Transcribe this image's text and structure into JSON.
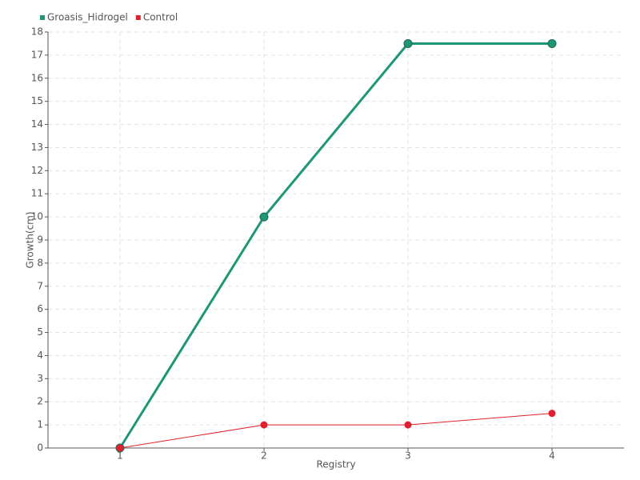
{
  "chart_data": {
    "type": "line",
    "x_label": "Registry",
    "y_label": "Growth(cm)",
    "categories": [
      "1",
      "2",
      "3",
      "4"
    ],
    "series": [
      {
        "name": "Groasis_Hidrogel",
        "color": "#1f9777",
        "values": [
          0,
          10,
          17.5,
          17.5
        ]
      },
      {
        "name": "Control",
        "color": "#e0202e",
        "values": [
          0,
          1,
          1,
          1.5
        ]
      }
    ],
    "ylim": [
      0,
      18
    ],
    "yticks": [
      0,
      1,
      2,
      3,
      4,
      5,
      6,
      7,
      8,
      9,
      10,
      11,
      12,
      13,
      14,
      15,
      16,
      17,
      18
    ],
    "grid": true,
    "legend": "top-left"
  }
}
